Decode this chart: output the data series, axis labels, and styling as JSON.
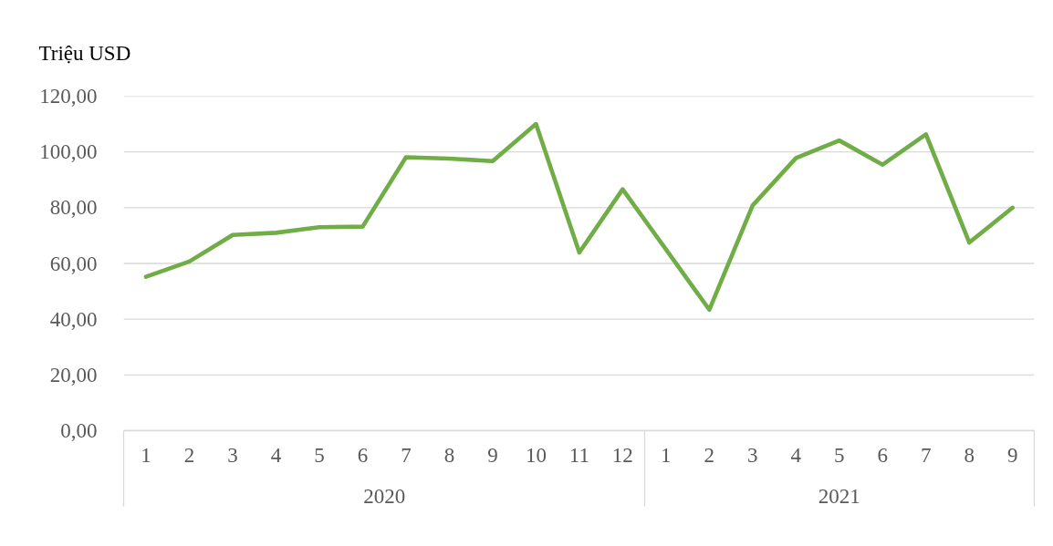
{
  "chart_data": {
    "type": "line",
    "ylabel": "Triệu USD",
    "x": [
      "2020-01",
      "2020-02",
      "2020-03",
      "2020-04",
      "2020-05",
      "2020-06",
      "2020-07",
      "2020-08",
      "2020-09",
      "2020-10",
      "2020-11",
      "2020-12",
      "2021-01",
      "2021-02",
      "2021-03",
      "2021-04",
      "2021-05",
      "2021-06",
      "2021-07",
      "2021-08",
      "2021-09"
    ],
    "xlim": [
      "2019-12-16",
      "2021-09-16"
    ],
    "xticks": [
      {
        "value": "2020-01",
        "label": "1"
      },
      {
        "value": "2020-02",
        "label": "2"
      },
      {
        "value": "2020-03",
        "label": "3"
      },
      {
        "value": "2020-04",
        "label": "4"
      },
      {
        "value": "2020-05",
        "label": "5"
      },
      {
        "value": "2020-06",
        "label": "6"
      },
      {
        "value": "2020-07",
        "label": "7"
      },
      {
        "value": "2020-08",
        "label": "8"
      },
      {
        "value": "2020-09",
        "label": "9"
      },
      {
        "value": "2020-10",
        "label": "10"
      },
      {
        "value": "2020-11",
        "label": "11"
      },
      {
        "value": "2020-12",
        "label": "12"
      },
      {
        "value": "2021-01",
        "label": "1"
      },
      {
        "value": "2021-02",
        "label": "2"
      },
      {
        "value": "2021-03",
        "label": "3"
      },
      {
        "value": "2021-04",
        "label": "4"
      },
      {
        "value": "2021-05",
        "label": "5"
      },
      {
        "value": "2021-06",
        "label": "6"
      },
      {
        "value": "2021-07",
        "label": "7"
      },
      {
        "value": "2021-08",
        "label": "8"
      },
      {
        "value": "2021-09",
        "label": "9"
      }
    ],
    "ylim": [
      0,
      120
    ],
    "yticks": [
      {
        "value": 0,
        "label": "0,00"
      },
      {
        "value": 20,
        "label": "20,00"
      },
      {
        "value": 40,
        "label": "40,00"
      },
      {
        "value": 60,
        "label": "60,00"
      },
      {
        "value": 80,
        "label": "80,00"
      },
      {
        "value": 100,
        "label": "100,00"
      },
      {
        "value": 120,
        "label": "120,00"
      }
    ],
    "series": [
      {
        "color": "#70ad47",
        "values": [
          55.2,
          60.7,
          70.2,
          71.0,
          73.0,
          73.2,
          98.1,
          97.6,
          96.7,
          110.0,
          63.9,
          86.6,
          65.0,
          43.4,
          80.8,
          97.8,
          104.1,
          95.4,
          106.3,
          67.5,
          80.0
        ]
      }
    ],
    "annotations": [
      "2020",
      "2021"
    ],
    "grid": "y",
    "line_style": "solid"
  }
}
